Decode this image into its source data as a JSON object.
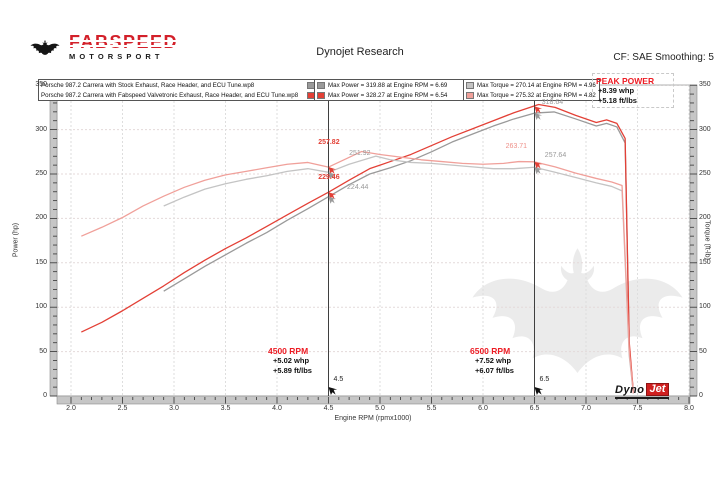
{
  "header": {
    "logo_brand": "FABSPEED",
    "logo_sub": "MOTORSPORT",
    "title": "Dynojet Research",
    "smoothing": "CF: SAE Smoothing: 5"
  },
  "annotations": {
    "peak_power": {
      "title": "PEAK POWER",
      "line1": "+8.39 whp",
      "line2": "+5.18 ft/lbs"
    },
    "rpm_4500": {
      "title": "4500 RPM",
      "line1": "+5.02 whp",
      "line2": "+5.89 ft/lbs"
    },
    "rpm_6500": {
      "title": "6500 RPM",
      "line1": "+7.52 whp",
      "line2": "+6.07 ft/lbs"
    }
  },
  "watermark_logo": {
    "dyno": "Dyno",
    "jet": "Jet"
  },
  "colors": {
    "accent_red": "#ed1c24",
    "brand_red": "#d3202a",
    "cursor_line": "#3f3f3f",
    "grid": "#dedede"
  },
  "chart_data": {
    "type": "line",
    "title": "Dynojet Research",
    "xlabel": "Engine RPM (rpmx1000)",
    "ylabel_left": "Power (hp)",
    "ylabel_right": "Torque (ft-lb)",
    "xlim": [
      2.0,
      8.0
    ],
    "ylim": [
      0,
      350
    ],
    "x_major": 0.5,
    "x_minor": 0.1,
    "y_major": 50,
    "y_minor": 10,
    "grid": "dashed",
    "legend_position": "top",
    "series": [
      {
        "name": "stock_power",
        "legend": "Porsche 987.2 Carrera with Stock Exhaust, Race Header, and ECU Tune.wp8",
        "stat": "Max Power = 319.88 at Engine RPM = 6.69",
        "color": "#9a9a9a",
        "x": [
          2.9,
          3.1,
          3.3,
          3.5,
          3.7,
          3.9,
          4.1,
          4.3,
          4.5,
          4.7,
          4.9,
          5.1,
          5.3,
          5.5,
          5.7,
          5.9,
          6.1,
          6.3,
          6.5,
          6.69,
          6.9,
          7.1,
          7.2,
          7.3,
          7.38,
          7.42,
          7.46
        ],
        "y": [
          118,
          132,
          146,
          159,
          172,
          184,
          198,
          211,
          224.4,
          238,
          250,
          257,
          265,
          275,
          286,
          295,
          304,
          312,
          318.6,
          319.9,
          312,
          304,
          307,
          303,
          285,
          55,
          3
        ]
      },
      {
        "name": "fabspeed_power",
        "legend": "Porsche 987.2 Carrera with Fabspeed Valvetronic Exhaust, Race Header, and ECU Tune.wp8",
        "stat": "Max Power = 328.27 at Engine RPM = 6.54",
        "color": "#e34036",
        "x": [
          2.1,
          2.3,
          2.5,
          2.7,
          2.9,
          3.1,
          3.3,
          3.5,
          3.7,
          3.9,
          4.1,
          4.3,
          4.5,
          4.7,
          4.9,
          5.1,
          5.3,
          5.5,
          5.7,
          5.9,
          6.1,
          6.3,
          6.54,
          6.7,
          6.9,
          7.1,
          7.2,
          7.3,
          7.38,
          7.42,
          7.46
        ],
        "y": [
          72,
          83,
          96,
          110,
          124,
          139,
          153,
          166,
          178,
          191,
          204,
          217,
          229.5,
          243,
          256,
          264,
          272,
          282,
          292,
          301,
          310,
          319,
          328.3,
          325,
          316,
          308,
          311,
          307,
          290,
          60,
          4
        ]
      },
      {
        "name": "stock_torque",
        "stat": "Max Torque = 270.14 at Engine RPM = 4.96",
        "color": "#c4c4c4",
        "x": [
          2.9,
          3.1,
          3.3,
          3.5,
          3.7,
          3.9,
          4.1,
          4.3,
          4.5,
          4.7,
          4.96,
          5.1,
          5.3,
          5.5,
          5.7,
          5.9,
          6.1,
          6.3,
          6.5,
          6.7,
          6.9,
          7.1,
          7.25,
          7.35,
          7.42,
          7.46
        ],
        "y": [
          214,
          224,
          233,
          239,
          244,
          248,
          253,
          256,
          251.9,
          261,
          270.1,
          266,
          263,
          262,
          260,
          258,
          256,
          256,
          257.6,
          252,
          246,
          240,
          236,
          231,
          45,
          3
        ]
      },
      {
        "name": "fabspeed_torque",
        "stat": "Max Torque = 275.32 at Engine RPM = 4.82",
        "color": "#f0a09a",
        "x": [
          2.1,
          2.3,
          2.5,
          2.7,
          2.9,
          3.1,
          3.3,
          3.5,
          3.7,
          3.9,
          4.1,
          4.3,
          4.5,
          4.65,
          4.82,
          5.0,
          5.2,
          5.4,
          5.6,
          5.8,
          6.0,
          6.2,
          6.35,
          6.5,
          6.7,
          6.9,
          7.1,
          7.25,
          7.35,
          7.42,
          7.46
        ],
        "y": [
          180,
          190,
          201,
          214,
          225,
          235,
          243,
          249,
          253,
          257,
          261,
          263,
          257.8,
          266,
          275.3,
          272,
          269,
          266,
          264,
          262,
          261,
          262,
          264,
          263.7,
          258,
          251,
          245,
          241,
          237,
          50,
          3
        ]
      }
    ],
    "cursors": [
      {
        "rpm": 4.5,
        "label": "4.5"
      },
      {
        "rpm": 6.5,
        "label": "6.5"
      }
    ],
    "markers": [
      {
        "x": 4.5,
        "y": 257.82,
        "color": "#e34036"
      },
      {
        "x": 4.5,
        "y": 251.92,
        "color": "#9a9a9a"
      },
      {
        "x": 4.5,
        "y": 229.46,
        "color": "#e34036"
      },
      {
        "x": 4.5,
        "y": 224.44,
        "color": "#9a9a9a"
      },
      {
        "x": 6.5,
        "y": 326.16,
        "color": "#e34036"
      },
      {
        "x": 6.5,
        "y": 318.64,
        "color": "#9a9a9a"
      },
      {
        "x": 6.5,
        "y": 263.71,
        "color": "#e34036"
      },
      {
        "x": 6.5,
        "y": 257.64,
        "color": "#9a9a9a"
      }
    ],
    "point_labels": [
      {
        "text": "257.82",
        "x": 4.4,
        "y": 289,
        "color": "#e34036",
        "bold": true
      },
      {
        "text": "251.92",
        "x": 4.7,
        "y": 277,
        "color": "#9a9a9a",
        "bold": false
      },
      {
        "text": "229.46",
        "x": 4.4,
        "y": 250,
        "color": "#e34036",
        "bold": true
      },
      {
        "text": "224.44",
        "x": 4.68,
        "y": 239,
        "color": "#9a9a9a",
        "bold": false
      },
      {
        "text": "318.64",
        "x": 6.57,
        "y": 334,
        "color": "#9a9a9a",
        "bold": false
      },
      {
        "text": "263.71",
        "x": 6.22,
        "y": 285,
        "color": "#ee8f88",
        "bold": false
      },
      {
        "text": "257.64",
        "x": 6.6,
        "y": 275,
        "color": "#9a9a9a",
        "bold": false
      }
    ]
  }
}
